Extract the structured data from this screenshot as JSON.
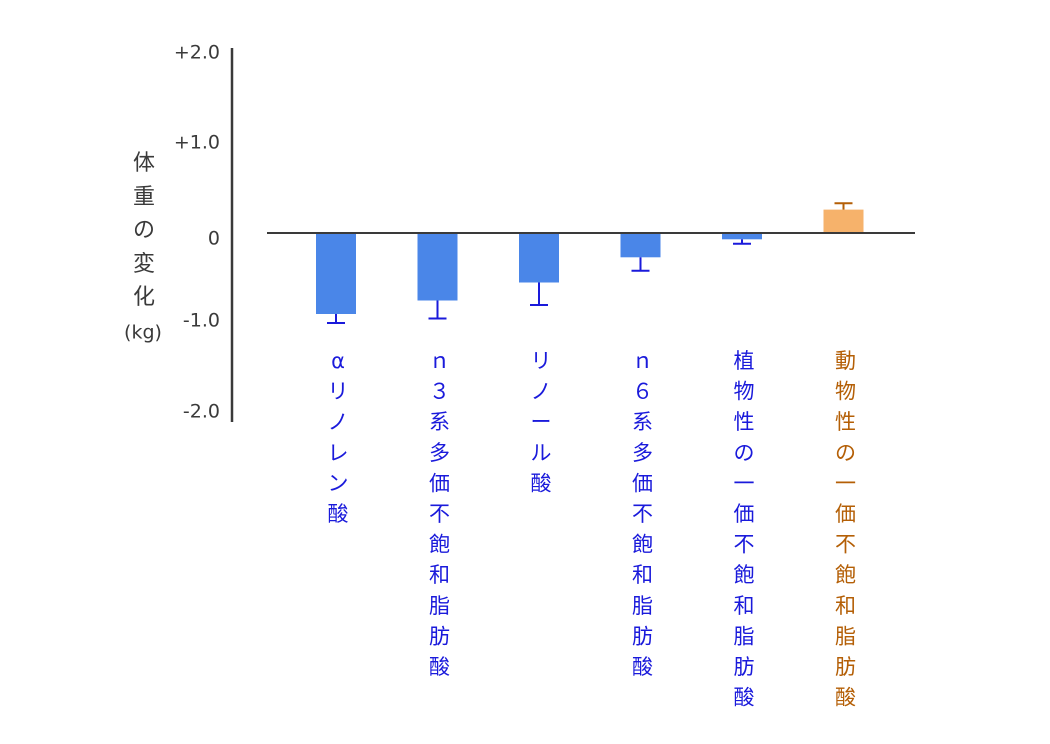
{
  "chart_data": {
    "type": "bar",
    "ylabel": "体重の変化",
    "yunit": "(kg)",
    "ylim": [
      -2.0,
      2.0
    ],
    "yticks": [
      {
        "value": 2.0,
        "label": "+2.0"
      },
      {
        "value": 1.0,
        "label": "+1.0"
      },
      {
        "value": 0,
        "label": "0"
      },
      {
        "value": -1.0,
        "label": "-1.0"
      },
      {
        "value": -2.0,
        "label": "-2.0"
      }
    ],
    "categories": [
      "αリノレン酸",
      "ｎ３系多価不飽和脂肪酸",
      "リノール酸",
      "ｎ６系多価不飽和脂肪酸",
      "植物性の一価不飽和脂肪酸",
      "動物性の一価不飽和脂肪酸"
    ],
    "values": [
      -0.9,
      -0.75,
      -0.55,
      -0.27,
      -0.07,
      0.26
    ],
    "error": [
      0.1,
      0.2,
      0.25,
      0.15,
      0.05,
      0.07
    ],
    "colors": [
      "#4a86e8",
      "#4a86e8",
      "#4a86e8",
      "#4a86e8",
      "#4a86e8",
      "#f6b26b"
    ],
    "error_colors": [
      "#1a1adb",
      "#1a1adb",
      "#1a1adb",
      "#1a1adb",
      "#1a1adb",
      "#b45f06"
    ],
    "label_colors": [
      "#1a1adb",
      "#1a1adb",
      "#1a1adb",
      "#1a1adb",
      "#1a1adb",
      "#b45f06"
    ],
    "grid": false,
    "legend": "none"
  }
}
